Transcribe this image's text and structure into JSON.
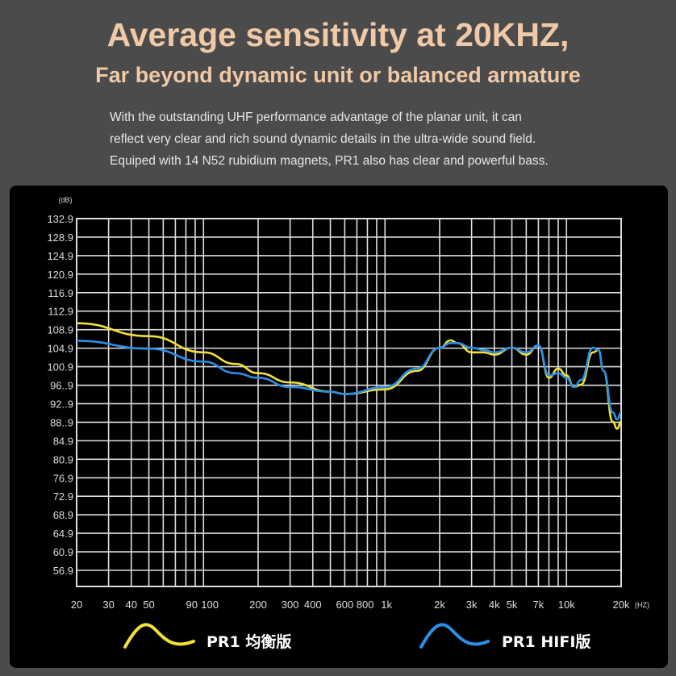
{
  "header": {
    "title": "Average sensitivity at 20KHZ,",
    "subtitle": "Far beyond dynamic unit or balanced armature",
    "description": [
      "With the outstanding UHF performance advantage of the planar unit, it can",
      "reflect very clear and rich sound dynamic details in the ultra-wide sound field.",
      "Equiped with 14 N52 rubidium magnets, PR1 also has clear and powerful bass."
    ]
  },
  "chart_data": {
    "type": "line",
    "title": "",
    "xlabel": "(HZ)",
    "ylabel": "(dB)",
    "xscale": "log",
    "xlim": [
      20,
      20000
    ],
    "ylim": [
      52.9,
      132.9
    ],
    "grid": true,
    "legend": "bottom",
    "y_ticks": [
      "132.9",
      "128.9",
      "124.9",
      "120.9",
      "116.9",
      "112.9",
      "108.9",
      "104.9",
      "100.9",
      "96..9",
      "92..9",
      "88..9",
      "84.9",
      "80.9",
      "76.9",
      "72.9",
      "68.9",
      "64.9",
      "60.9",
      "56.9"
    ],
    "y_tick_values": [
      132.9,
      128.9,
      124.9,
      120.9,
      116.9,
      112.9,
      108.9,
      104.9,
      100.9,
      96.9,
      92.9,
      88.9,
      84.9,
      80.9,
      76.9,
      72.9,
      68.9,
      64.9,
      60.9,
      56.9
    ],
    "x_ticks": [
      {
        "v": 20,
        "l": "20"
      },
      {
        "v": 30,
        "l": "30"
      },
      {
        "v": 40,
        "l": "40"
      },
      {
        "v": 50,
        "l": "50"
      },
      {
        "v": 90,
        "l": "90"
      },
      {
        "v": 100,
        "l": "100"
      },
      {
        "v": 200,
        "l": "200"
      },
      {
        "v": 300,
        "l": "300"
      },
      {
        "v": 400,
        "l": "400"
      },
      {
        "v": 600,
        "l": "600"
      },
      {
        "v": 800,
        "l": "800"
      },
      {
        "v": 1000,
        "l": "1k"
      },
      {
        "v": 2000,
        "l": "2k"
      },
      {
        "v": 3000,
        "l": "3k"
      },
      {
        "v": 4000,
        "l": "4k"
      },
      {
        "v": 5000,
        "l": "5k"
      },
      {
        "v": 7000,
        "l": "7k"
      },
      {
        "v": 10000,
        "l": "10k"
      },
      {
        "v": 20000,
        "l": "20k"
      }
    ],
    "x_grid": [
      20,
      30,
      40,
      50,
      60,
      70,
      80,
      90,
      100,
      200,
      300,
      400,
      500,
      600,
      700,
      800,
      900,
      1000,
      2000,
      3000,
      4000,
      5000,
      6000,
      7000,
      8000,
      9000,
      10000,
      20000
    ],
    "x": [
      20,
      50,
      100,
      150,
      200,
      300,
      500,
      600,
      1000,
      1500,
      2000,
      2300,
      2500,
      3000,
      3500,
      4000,
      5000,
      6000,
      7000,
      8000,
      9000,
      10000,
      11000,
      12000,
      14000,
      15000,
      16000,
      18000,
      19000,
      20000
    ],
    "series": [
      {
        "name": "PR1 均衡版",
        "color": "#f2e03a",
        "values": [
          110.3,
          107.5,
          104,
          101.5,
          99.5,
          97.5,
          95.5,
          95,
          96,
          100,
          105,
          106.6,
          106,
          104,
          104,
          103.5,
          105,
          103.5,
          105.5,
          98.5,
          100.5,
          99,
          96.5,
          97,
          104,
          104.5,
          100,
          89,
          87.5,
          89
        ]
      },
      {
        "name": "PR1 HIFI版",
        "color": "#2a8fe6",
        "values": [
          106.5,
          104.8,
          102,
          99.5,
          98.5,
          96.5,
          95.5,
          95,
          96.5,
          100.5,
          105,
          106,
          106,
          105,
          104.5,
          104,
          105,
          104,
          105.5,
          99,
          99.5,
          98.5,
          96.5,
          98,
          105,
          104.5,
          100,
          91,
          89.5,
          91
        ]
      }
    ]
  }
}
